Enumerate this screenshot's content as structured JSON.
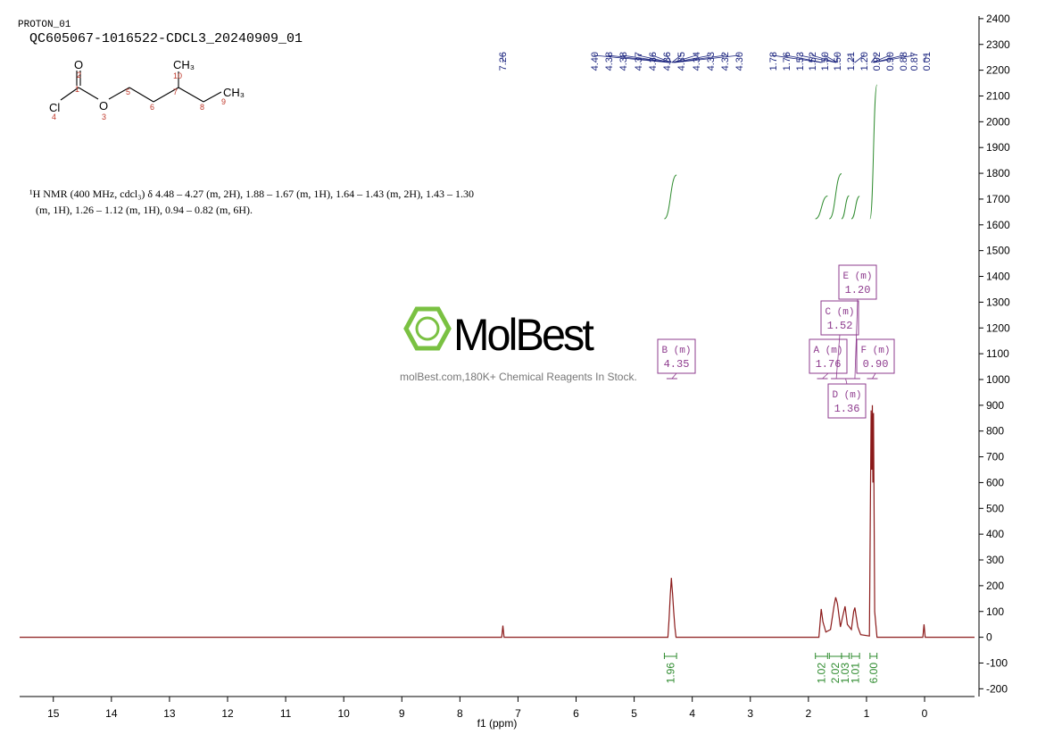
{
  "chart_data": {
    "type": "nmr",
    "sample_id": "PROTON_01",
    "title": "QC605067-1016522-CDCL3_20240909_01",
    "description": [
      "¹H NMR (400 MHz, cdcl₃) δ 4.48 – 4.27 (m, 2H), 1.88 – 1.67 (m, 1H), 1.64 – 1.43 (m, 2H), 1.43 – 1.30",
      "(m, 1H), 1.26 – 1.12 (m, 1H), 0.94 – 0.82 (m, 6H)."
    ],
    "structure": {
      "atoms": [
        "O",
        "Cl",
        "O",
        "CH₃",
        "CH₃"
      ],
      "numbers": [
        "2",
        "1",
        "4",
        "3",
        "5",
        "6",
        "10",
        "7",
        "8",
        "9"
      ]
    },
    "watermark": {
      "brand": "MolBest",
      "tagline": "molBest.com,180K+ Chemical Reagents In Stock."
    },
    "xlabel": "f1 (ppm)",
    "xlim": [
      15.58,
      -0.86
    ],
    "xticks": [
      15,
      14,
      13,
      12,
      11,
      10,
      9,
      8,
      7,
      6,
      5,
      4,
      3,
      2,
      1,
      0
    ],
    "ylim": [
      -230,
      2410
    ],
    "yticks": [
      -200,
      -100,
      0,
      100,
      200,
      300,
      400,
      500,
      600,
      700,
      800,
      900,
      1000,
      1100,
      1200,
      1300,
      1400,
      1500,
      1600,
      1700,
      1800,
      1900,
      2000,
      2100,
      2200,
      2300,
      2400
    ],
    "color": "#8b1a1a",
    "x": [
      15.58,
      7.28,
      7.26,
      7.24,
      4.42,
      4.4,
      4.38,
      4.36,
      4.35,
      4.34,
      4.32,
      4.3,
      4.28,
      1.82,
      1.78,
      1.75,
      1.7,
      1.62,
      1.56,
      1.53,
      1.5,
      1.45,
      1.4,
      1.37,
      1.33,
      1.26,
      1.22,
      1.2,
      1.15,
      1.1,
      0.95,
      0.92,
      0.91,
      0.9,
      0.89,
      0.88,
      0.86,
      0.82,
      0.03,
      0.01,
      -0.01,
      -0.86
    ],
    "values": [
      0,
      0,
      45,
      0,
      0,
      70,
      160,
      230,
      200,
      170,
      100,
      40,
      0,
      0,
      110,
      60,
      20,
      30,
      120,
      155,
      130,
      40,
      90,
      120,
      50,
      30,
      100,
      115,
      40,
      10,
      5,
      880,
      650,
      900,
      600,
      870,
      100,
      0,
      0,
      50,
      0,
      0
    ],
    "peaks": {
      "color": "#1a237e",
      "values": [
        7.26,
        4.4,
        4.38,
        4.38,
        4.37,
        4.36,
        4.36,
        4.35,
        4.34,
        4.33,
        4.32,
        4.3,
        1.78,
        1.76,
        1.53,
        1.52,
        1.5,
        1.5,
        1.21,
        1.2,
        0.92,
        0.9,
        0.88,
        0.87,
        0.01
      ],
      "value_labels": [
        "7.26",
        "4.40",
        "4.38",
        "4.38",
        "4.37",
        "4.36",
        "4.36",
        "4.35",
        "4.34",
        "4.33",
        "4.32",
        "4.30",
        "1.78",
        "1.76",
        "1.53",
        "1.52",
        "1.50",
        "1.50",
        "1.21",
        "1.20",
        "0.92",
        "0.90",
        "0.88",
        "0.87",
        "0.01"
      ]
    },
    "integrals": {
      "color": "#2e8b2e",
      "ranges": [
        [
          4.48,
          4.27
        ],
        [
          1.88,
          1.67
        ],
        [
          1.64,
          1.43
        ],
        [
          1.43,
          1.3
        ],
        [
          1.26,
          1.12
        ],
        [
          0.94,
          0.82
        ]
      ],
      "values": [
        1.96,
        1.02,
        2.02,
        1.03,
        1.01,
        6
      ],
      "value_labels": [
        "1.96",
        "1.02",
        "2.02",
        "1.03",
        "1.01",
        "6.00"
      ]
    },
    "multiplets": {
      "color": "#8e3b8e",
      "names": [
        "B (m)",
        "A (m)",
        "C (m)",
        "D (m)",
        "E (m)",
        "F (m)"
      ],
      "shifts": [
        4.35,
        1.76,
        1.52,
        1.36,
        1.2,
        0.9
      ],
      "shift_labels": [
        "4.35",
        "1.76",
        "1.52",
        "1.36",
        "1.20",
        "0.90"
      ]
    }
  }
}
